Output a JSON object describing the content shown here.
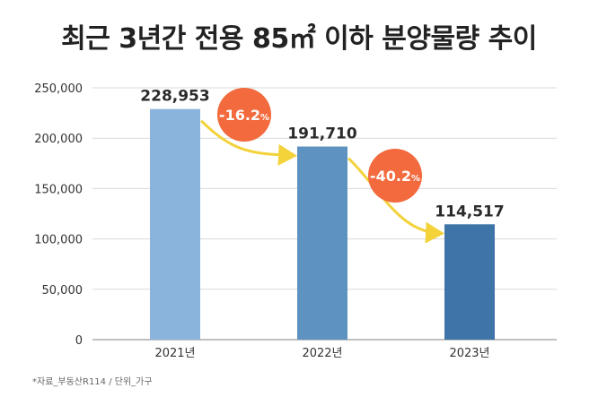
{
  "chart_data": {
    "type": "bar",
    "title": "최근 3년간 전용 85㎡ 이하 분양물량 추이",
    "categories": [
      "2021년",
      "2022년",
      "2023년"
    ],
    "values": [
      228953,
      191710,
      114517
    ],
    "value_labels": [
      "228,953",
      "191,710",
      "114,517"
    ],
    "bar_colors": [
      "#8ab4dc",
      "#5e93c1",
      "#3f74a8"
    ],
    "ylim": [
      0,
      250000
    ],
    "yticks": [
      0,
      50000,
      100000,
      150000,
      200000,
      250000
    ],
    "ytick_labels": [
      "0",
      "50,000",
      "100,000",
      "150,000",
      "200,000",
      "250,000"
    ],
    "grid": true,
    "changes": [
      {
        "main": "-16.2",
        "unit": "%"
      },
      {
        "main": "-40.2",
        "unit": "%"
      }
    ],
    "change_badge_color": "#f26a3d",
    "arrow_color": "#f3d23a",
    "note": "*자료_부동산R114 / 단위_가구"
  }
}
